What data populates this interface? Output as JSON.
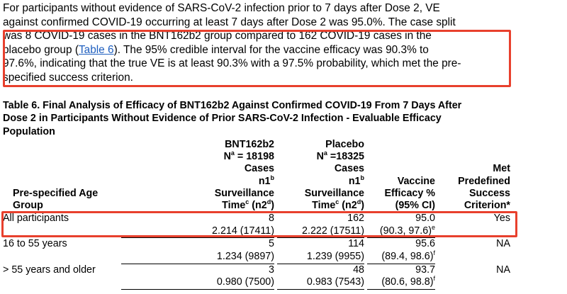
{
  "paragraph": {
    "line1": "For participants without evidence of SARS-CoV-2 infection prior to 7 days after Dose 2, VE",
    "line2": "against confirmed COVID-19 occurring at least 7 days after Dose 2 was 95.0%. The case split",
    "line3": "was 8 COVID-19 cases in the BNT162b2 group compared to 162 COVID-19 cases in the",
    "line4_pre": "placebo group (",
    "link_text": "Table 6",
    "line4_post": "). The 95% credible interval for the vaccine efficacy was 90.3% to",
    "line5": "97.6%, indicating that the true VE is at least 90.3% with a 97.5% probability, which met the pre-",
    "line6": "specified success criterion."
  },
  "caption": {
    "line1": "Table 6. Final Analysis of Efficacy of BNT162b2 Against Confirmed COVID-19 From 7 Days After",
    "line2": "Dose 2 in Participants Without Evidence of Prior SARS-CoV-2 Infection - Evaluable Efficacy",
    "line3": "Population"
  },
  "table": {
    "headers": {
      "age_group": "Pre-specified Age Group",
      "bnt_l1": "BNT162b2",
      "bnt_l2_pre": "N",
      "bnt_l2_sup": "a",
      "bnt_l2_post": " = 18198",
      "bnt_l3": "Cases",
      "bnt_l4_pre": "n1",
      "bnt_l4_sup": "b",
      "bnt_l5": "Surveillance",
      "bnt_l6_pre": "Time",
      "bnt_l6_sup1": "c",
      "bnt_l6_mid": " (n2",
      "bnt_l6_sup2": "d",
      "bnt_l6_post": ")",
      "pbo_l1": "Placebo",
      "pbo_l2_pre": "N",
      "pbo_l2_sup": "a",
      "pbo_l2_post": " =18325",
      "pbo_l3": "Cases",
      "pbo_l4_pre": "n1",
      "pbo_l4_sup": "b",
      "pbo_l5": "Surveillance",
      "pbo_l6_pre": "Time",
      "pbo_l6_sup1": "c",
      "pbo_l6_mid": " (n2",
      "pbo_l6_sup2": "d",
      "pbo_l6_post": ")",
      "ve_l1": "Vaccine",
      "ve_l2": "Efficacy %",
      "ve_l3": "(95% CI)",
      "met_l1": "Met",
      "met_l2": "Predefined",
      "met_l3": "Success",
      "met_l4": "Criterion*"
    },
    "rows": [
      {
        "age": "All participants",
        "bnt_cases": "8",
        "bnt_time": "2.214 (17411)",
        "pbo_cases": "162",
        "pbo_time": "2.222 (17511)",
        "ve": "95.0",
        "ci": "(90.3, 97.6)",
        "ci_sup": "e",
        "met": "Yes"
      },
      {
        "age": "16 to 55 years",
        "bnt_cases": "5",
        "bnt_time": "1.234 (9897)",
        "pbo_cases": "114",
        "pbo_time": "1.239 (9955)",
        "ve": "95.6",
        "ci": "(89.4, 98.6)",
        "ci_sup": "f",
        "met": "NA"
      },
      {
        "age": "> 55 years and older",
        "bnt_cases": "3",
        "bnt_time": "0.980 (7500)",
        "pbo_cases": "48",
        "pbo_time": "0.983 (7543)",
        "ve": "93.7",
        "ci": "(80.6, 98.8)",
        "ci_sup": "f",
        "met": "NA"
      }
    ]
  },
  "highlight_color": "#e8402d",
  "link_color": "#1f5fbf"
}
